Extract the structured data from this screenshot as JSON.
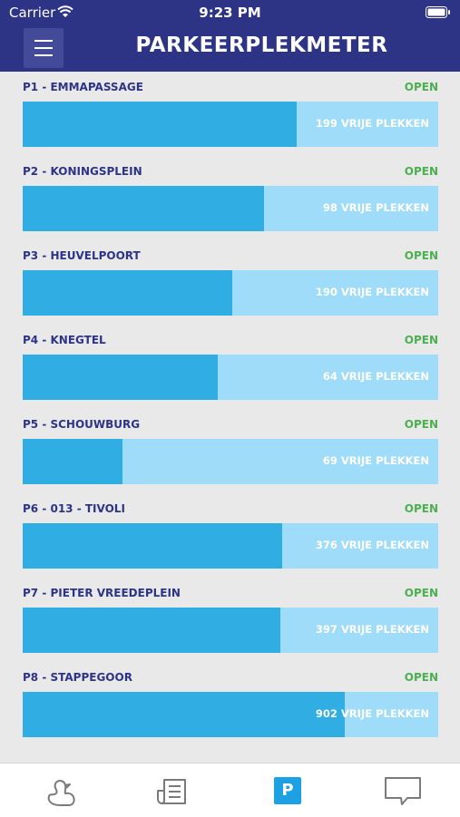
{
  "status_bar": {
    "carrier": "Carrier",
    "time": "9:23 PM"
  },
  "header": {
    "title": "PARKEERPLEKMETER",
    "menu_icon": "hamburger-icon"
  },
  "colors": {
    "header_bg": "#2d3486",
    "bar_free": "#9fdcf9",
    "bar_occupied": "#30ade3",
    "status_open": "#4caf50"
  },
  "garages": [
    {
      "name": "P1 - EMMAPASSAGE",
      "status": "OPEN",
      "free_count": "199",
      "free_label": "VRIJE PLEKKEN",
      "occupied_fraction": 0.66
    },
    {
      "name": "P2 - KONINGSPLEIN",
      "status": "OPEN",
      "free_count": "98",
      "free_label": "VRIJE PLEKKEN",
      "occupied_fraction": 0.58
    },
    {
      "name": "P3 - HEUVELPOORT",
      "status": "OPEN",
      "free_count": "190",
      "free_label": "VRIJE PLEKKEN",
      "occupied_fraction": 0.505
    },
    {
      "name": "P4 - KNEGTEL",
      "status": "OPEN",
      "free_count": "64",
      "free_label": "VRIJE PLEKKEN",
      "occupied_fraction": 0.47
    },
    {
      "name": "P5 - SCHOUWBURG",
      "status": "OPEN",
      "free_count": "69",
      "free_label": "VRIJE PLEKKEN",
      "occupied_fraction": 0.24
    },
    {
      "name": "P6 - 013 - TIVOLI",
      "status": "OPEN",
      "free_count": "376",
      "free_label": "VRIJE PLEKKEN",
      "occupied_fraction": 0.625
    },
    {
      "name": "P7 - PIETER VREEDEPLEIN",
      "status": "OPEN",
      "free_count": "397",
      "free_label": "VRIJE PLEKKEN",
      "occupied_fraction": 0.62
    },
    {
      "name": "P8 - STAPPEGOOR",
      "status": "OPEN",
      "free_count": "902",
      "free_label": "VRIJE PLEKKEN",
      "occupied_fraction": 0.775
    }
  ],
  "tabbar": {
    "tabs": [
      {
        "icon": "duck-icon"
      },
      {
        "icon": "news-icon"
      },
      {
        "icon": "parking-icon",
        "label": "P",
        "active": true
      },
      {
        "icon": "chat-icon"
      }
    ]
  }
}
